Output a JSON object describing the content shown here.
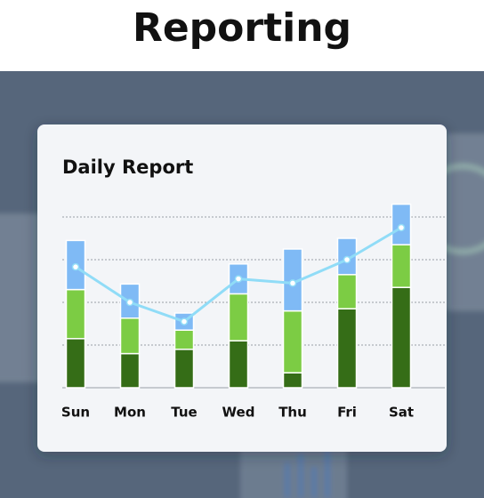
{
  "header": {
    "title": "Reporting"
  },
  "chart_data": {
    "type": "bar",
    "stacked": true,
    "title": "Daily Report",
    "categories": [
      "Sun",
      "Mon",
      "Tue",
      "Wed",
      "Thu",
      "Fri",
      "Sat"
    ],
    "series": [
      {
        "type": "bar",
        "color": "#356d17",
        "values": [
          1.15,
          0.8,
          0.9,
          1.1,
          0.35,
          1.85,
          2.35
        ]
      },
      {
        "type": "bar",
        "color": "#7ccc44",
        "values": [
          1.15,
          0.83,
          0.45,
          1.1,
          1.45,
          0.8,
          1.0
        ]
      },
      {
        "type": "bar",
        "color": "#7fbaf5",
        "values": [
          1.15,
          0.8,
          0.4,
          0.7,
          1.45,
          0.85,
          0.95
        ]
      },
      {
        "type": "line",
        "color": "#90dcf7",
        "values": [
          2.83,
          2.0,
          1.55,
          2.55,
          2.45,
          3.0,
          3.75
        ]
      }
    ],
    "ylim": [
      0,
      4.5
    ],
    "yticks": [
      0,
      1,
      2,
      3,
      4
    ],
    "grid": true
  }
}
